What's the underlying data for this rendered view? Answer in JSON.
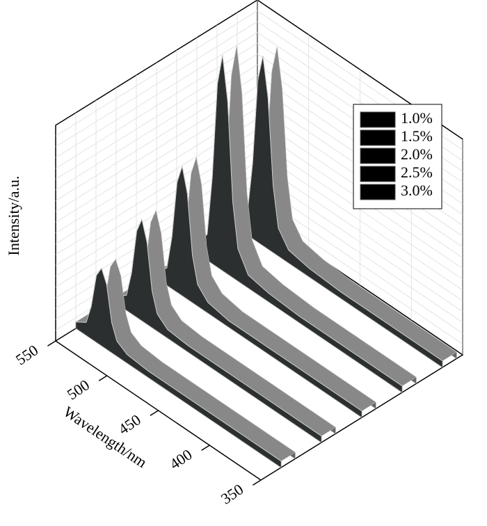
{
  "chart_data": {
    "type": "waterfall3d",
    "xlabel": "Wavelength/nm",
    "zlabel": "Intensity/a.u.",
    "x": [
      350,
      400,
      450,
      480,
      500,
      510,
      515,
      520,
      525,
      530,
      535,
      540,
      550
    ],
    "xlim": [
      350,
      550
    ],
    "xticks": [
      350,
      400,
      450,
      500,
      550
    ],
    "zlim": [
      0,
      1
    ],
    "grid": true,
    "legend": "upper right",
    "series": [
      {
        "name": "1.0%",
        "color": "#2b2f2f",
        "values": [
          0.03,
          0.03,
          0.03,
          0.03,
          0.04,
          0.07,
          0.14,
          0.3,
          0.36,
          0.31,
          0.15,
          0.06,
          0.03
        ]
      },
      {
        "name": "1.5%",
        "color": "#2b2f2f",
        "values": [
          0.03,
          0.03,
          0.03,
          0.03,
          0.04,
          0.08,
          0.17,
          0.38,
          0.47,
          0.4,
          0.19,
          0.07,
          0.03
        ]
      },
      {
        "name": "2.0%",
        "color": "#2b2f2f",
        "values": [
          0.03,
          0.03,
          0.03,
          0.03,
          0.05,
          0.1,
          0.22,
          0.49,
          0.6,
          0.51,
          0.24,
          0.08,
          0.03
        ]
      },
      {
        "name": "2.5%",
        "color": "#2b2f2f",
        "values": [
          0.03,
          0.03,
          0.03,
          0.04,
          0.06,
          0.15,
          0.35,
          0.8,
          1.0,
          0.85,
          0.4,
          0.12,
          0.04
        ]
      },
      {
        "name": "3.0%",
        "color": "#2b2f2f",
        "values": [
          0.03,
          0.03,
          0.03,
          0.04,
          0.06,
          0.13,
          0.31,
          0.7,
          0.88,
          0.75,
          0.35,
          0.11,
          0.04
        ]
      }
    ]
  }
}
